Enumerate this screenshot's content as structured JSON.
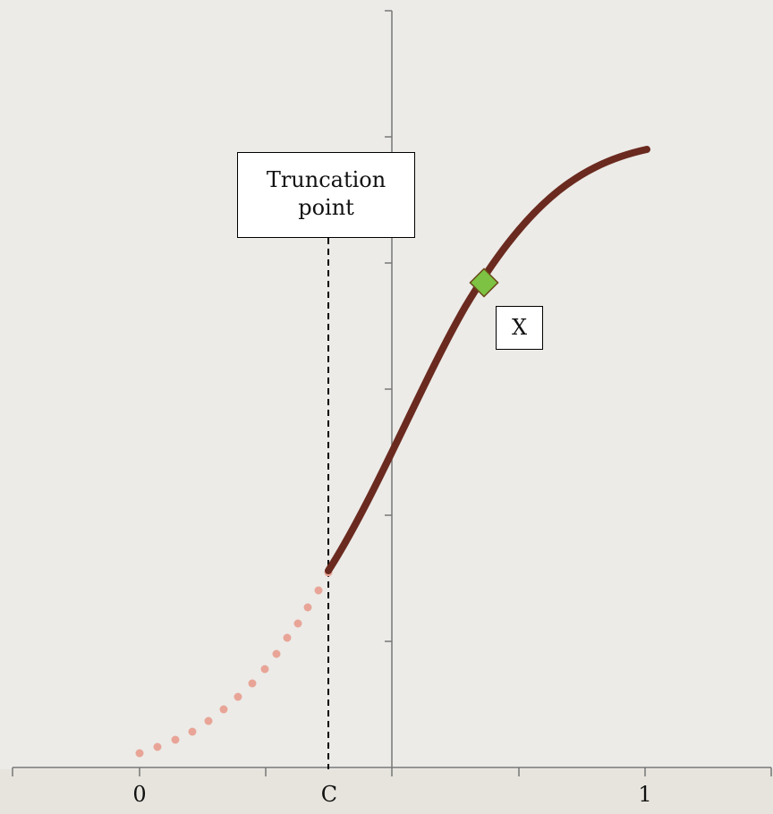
{
  "boxes": {
    "truncation_line1": "Truncation",
    "truncation_line2": "point",
    "marker_label": "X"
  },
  "x_axis": {
    "tick_labels": [
      {
        "text": "0",
        "value": 0
      },
      {
        "text": "C",
        "value": 0.75
      },
      {
        "text": "1",
        "value": 2
      }
    ]
  },
  "colors": {
    "solid_curve": "#6b2a1f",
    "dotted_curve": "#e8a597",
    "marker": "#7dc242",
    "axes": "#777777"
  }
}
